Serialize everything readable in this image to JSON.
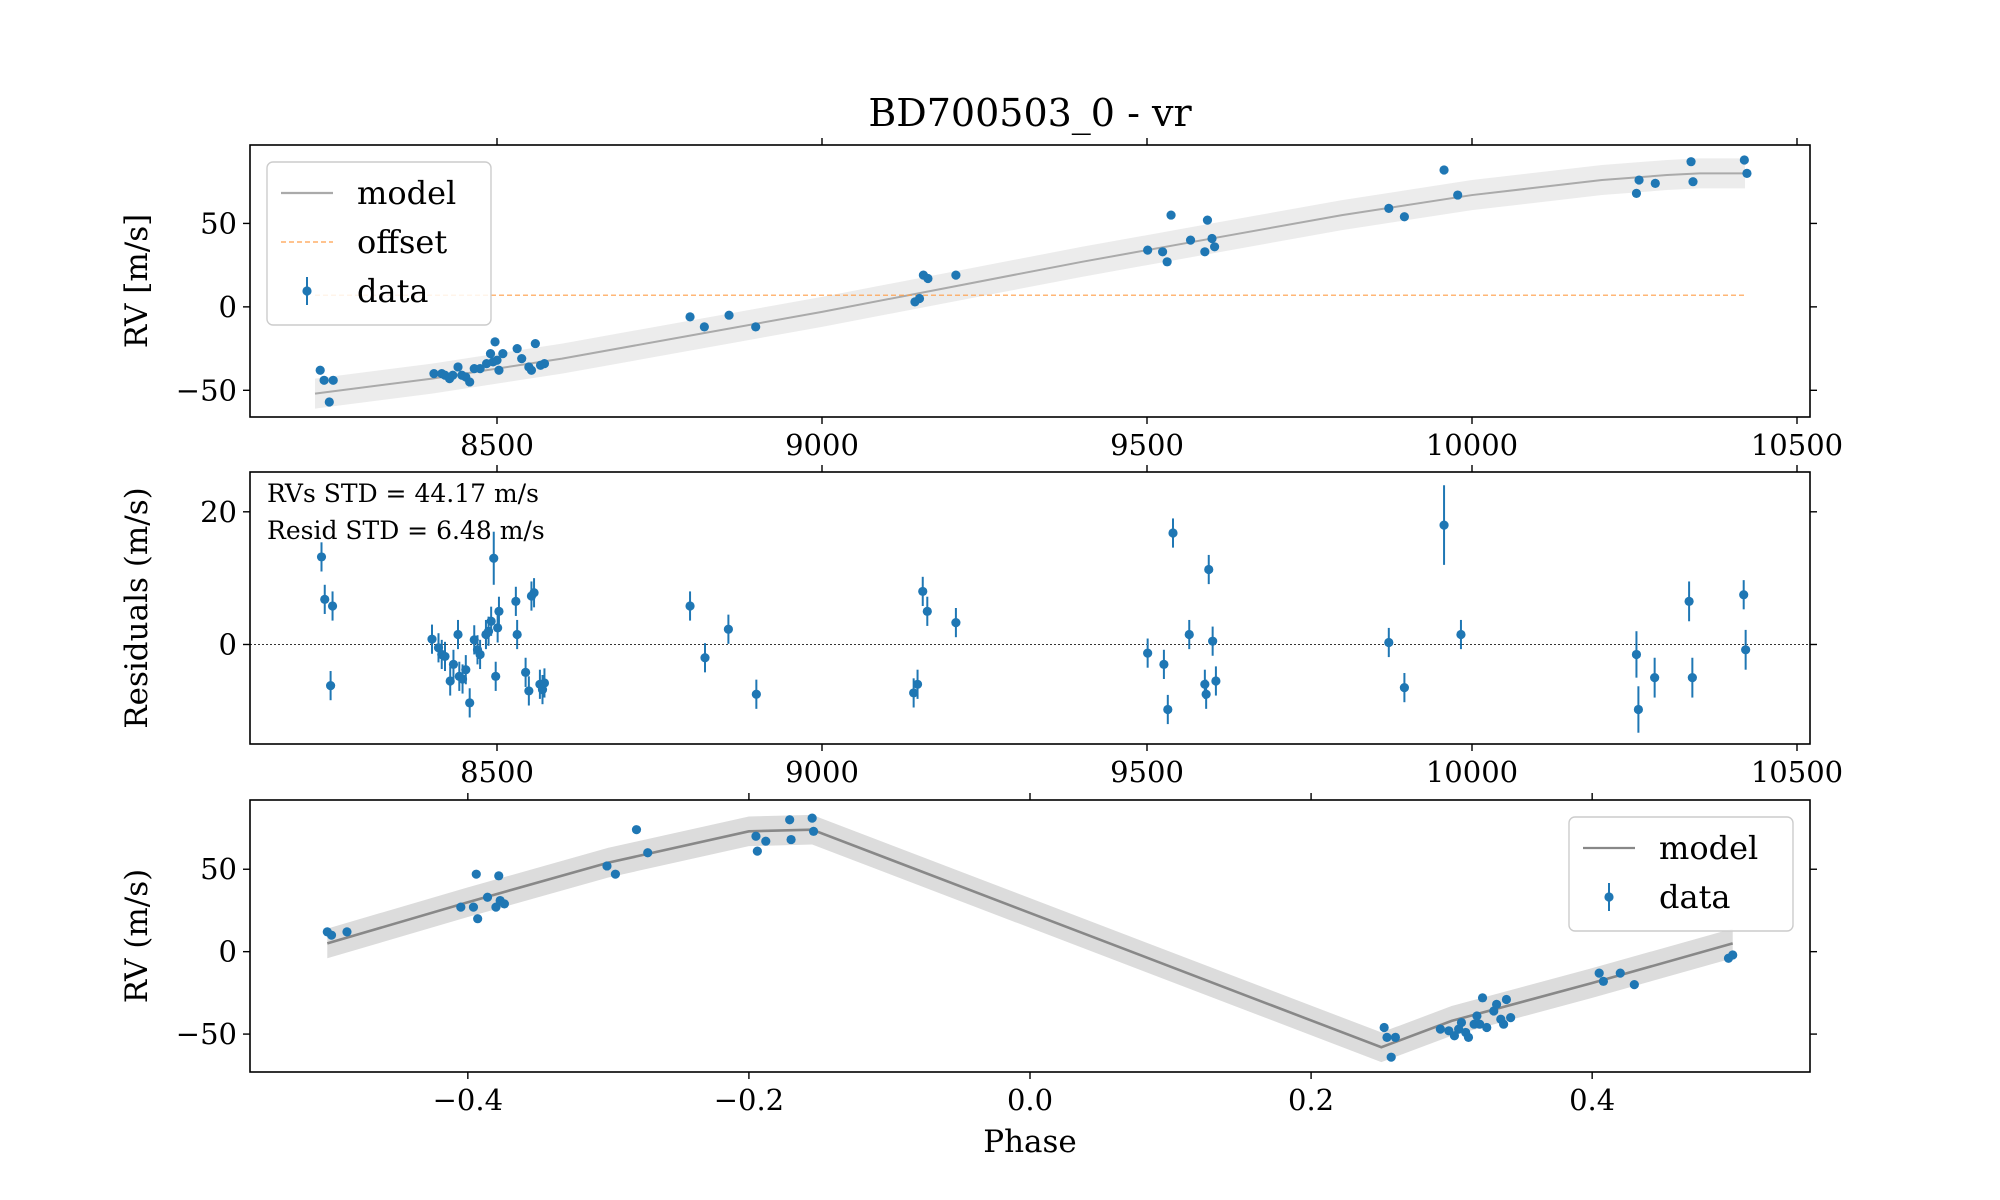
{
  "title": "BD700503_0 - vr",
  "colors": {
    "data": "#1f77b4",
    "model": "#999999",
    "offset": "#ff9f4a",
    "band": "#dcdcdc"
  },
  "chart_data": [
    {
      "type": "scatter",
      "name": "rv-time",
      "ylabel": "RV [m/s]",
      "xlim": [
        8120,
        10520
      ],
      "ylim": [
        -66,
        97
      ],
      "xticks": [
        8500,
        9000,
        9500,
        10000,
        10500
      ],
      "yticks": [
        -50,
        0,
        50
      ],
      "legend": {
        "position": "top-left",
        "items": [
          "model",
          "offset",
          "data"
        ]
      },
      "offset_line": {
        "y": 7,
        "x": [
          8220,
          10420
        ]
      },
      "model": {
        "x": [
          8220,
          8400,
          8600,
          8800,
          9000,
          9200,
          9400,
          9600,
          9800,
          10000,
          10200,
          10300,
          10350,
          10420
        ],
        "y": [
          -52,
          -43,
          -31,
          -17,
          -3,
          12,
          27,
          41,
          55,
          67,
          76,
          79,
          80,
          80
        ]
      },
      "series": [
        {
          "name": "data",
          "points": [
            [
              8228,
              -38
            ],
            [
              8234,
              -44
            ],
            [
              8242,
              -57
            ],
            [
              8248,
              -44
            ],
            [
              8403,
              -40
            ],
            [
              8415,
              -40
            ],
            [
              8420,
              -41
            ],
            [
              8427,
              -43
            ],
            [
              8432,
              -41
            ],
            [
              8440,
              -36
            ],
            [
              8446,
              -41
            ],
            [
              8452,
              -42
            ],
            [
              8458,
              -45
            ],
            [
              8465,
              -37
            ],
            [
              8474,
              -37
            ],
            [
              8484,
              -34
            ],
            [
              8490,
              -28
            ],
            [
              8494,
              -33
            ],
            [
              8497,
              -21
            ],
            [
              8500,
              -32
            ],
            [
              8503,
              -38
            ],
            [
              8509,
              -28
            ],
            [
              8531,
              -25
            ],
            [
              8538,
              -31
            ],
            [
              8549,
              -36
            ],
            [
              8553,
              -38
            ],
            [
              8559,
              -22
            ],
            [
              8567,
              -35
            ],
            [
              8573,
              -34
            ],
            [
              8797,
              -6
            ],
            [
              8819,
              -12
            ],
            [
              8857,
              -5
            ],
            [
              8898,
              -12
            ],
            [
              9143,
              3
            ],
            [
              9150,
              5
            ],
            [
              9156,
              19
            ],
            [
              9163,
              17
            ],
            [
              9206,
              19
            ],
            [
              9501,
              34
            ],
            [
              9524,
              33
            ],
            [
              9531,
              27
            ],
            [
              9537,
              55
            ],
            [
              9567,
              40
            ],
            [
              9589,
              33
            ],
            [
              9593,
              52
            ],
            [
              9600,
              41
            ],
            [
              9604,
              36
            ],
            [
              9872,
              59
            ],
            [
              9896,
              54
            ],
            [
              9957,
              82
            ],
            [
              9978,
              67
            ],
            [
              10253,
              68
            ],
            [
              10257,
              76
            ],
            [
              10282,
              74
            ],
            [
              10337,
              87
            ],
            [
              10340,
              75
            ],
            [
              10419,
              88
            ],
            [
              10423,
              80
            ]
          ]
        }
      ]
    },
    {
      "type": "scatter",
      "name": "residuals-time",
      "ylabel": "Residuals (m/s)",
      "xlim": [
        8120,
        10520
      ],
      "ylim": [
        -15,
        26
      ],
      "xticks": [
        8500,
        9000,
        9500,
        10000,
        10500
      ],
      "yticks": [
        0,
        20
      ],
      "zero_line": 0,
      "annotations": [
        "RVs STD = 44.17 m/s",
        "Resid STD = 6.48 m/s"
      ],
      "series": [
        {
          "name": "data",
          "points": [
            [
              8230,
              13.2,
              2.2
            ],
            [
              8235,
              6.8,
              2.2
            ],
            [
              8244,
              -6.2,
              2.2
            ],
            [
              8247,
              5.8,
              2.2
            ],
            [
              8400,
              0.8,
              2.2
            ],
            [
              8410,
              -0.5,
              2.2
            ],
            [
              8415,
              -1.5,
              2.2
            ],
            [
              8420,
              -1.8,
              2.2
            ],
            [
              8428,
              -5.5,
              2.2
            ],
            [
              8433,
              -3.0,
              2.2
            ],
            [
              8440,
              1.5,
              2.2
            ],
            [
              8442,
              -4.8,
              2.2
            ],
            [
              8447,
              -5.2,
              2.2
            ],
            [
              8452,
              -3.8,
              2.2
            ],
            [
              8458,
              -8.8,
              2.2
            ],
            [
              8465,
              0.7,
              2.2
            ],
            [
              8470,
              -0.8,
              2.2
            ],
            [
              8474,
              -1.5,
              2.2
            ],
            [
              8483,
              1.5,
              2.2
            ],
            [
              8487,
              2.0,
              2.2
            ],
            [
              8491,
              3.5,
              2.2
            ],
            [
              8495,
              13.0,
              4.0
            ],
            [
              8498,
              -4.8,
              2.2
            ],
            [
              8501,
              2.5,
              2.2
            ],
            [
              8503,
              5.0,
              2.2
            ],
            [
              8529,
              6.5,
              2.2
            ],
            [
              8531,
              1.5,
              2.2
            ],
            [
              8544,
              -4.2,
              2.2
            ],
            [
              8549,
              -7.0,
              2.2
            ],
            [
              8553,
              7.3,
              2.2
            ],
            [
              8557,
              7.8,
              2.2
            ],
            [
              8566,
              -6.0,
              2.2
            ],
            [
              8570,
              -6.8,
              2.2
            ],
            [
              8573,
              -5.8,
              2.2
            ],
            [
              8797,
              5.8,
              2.2
            ],
            [
              8820,
              -2.0,
              2.2
            ],
            [
              8856,
              2.3,
              2.2
            ],
            [
              8899,
              -7.5,
              2.2
            ],
            [
              9141,
              -7.3,
              2.2
            ],
            [
              9147,
              -6.0,
              2.2
            ],
            [
              9155,
              8.0,
              2.2
            ],
            [
              9162,
              5.0,
              2.2
            ],
            [
              9206,
              3.3,
              2.2
            ],
            [
              9501,
              -1.3,
              2.2
            ],
            [
              9526,
              -3.0,
              2.2
            ],
            [
              9532,
              -9.8,
              2.2
            ],
            [
              9540,
              16.8,
              2.2
            ],
            [
              9565,
              1.5,
              2.2
            ],
            [
              9589,
              -6.0,
              2.2
            ],
            [
              9591,
              -7.5,
              2.2
            ],
            [
              9595,
              11.3,
              2.2
            ],
            [
              9601,
              0.5,
              2.2
            ],
            [
              9606,
              -5.5,
              2.2
            ],
            [
              9872,
              0.3,
              2.2
            ],
            [
              9896,
              -6.5,
              2.2
            ],
            [
              9957,
              18.0,
              6.0
            ],
            [
              9983,
              1.5,
              2.2
            ],
            [
              10253,
              -1.5,
              3.5
            ],
            [
              10256,
              -9.8,
              3.5
            ],
            [
              10281,
              -5.0,
              3.0
            ],
            [
              10334,
              6.5,
              3.0
            ],
            [
              10339,
              -5.0,
              3.0
            ],
            [
              10418,
              7.5,
              2.2
            ],
            [
              10421,
              -0.8,
              3.0
            ]
          ]
        }
      ]
    },
    {
      "type": "scatter",
      "name": "rv-phase",
      "xlabel": "Phase",
      "ylabel": "RV (m/s)",
      "xlim": [
        -0.555,
        0.555
      ],
      "ylim": [
        -73,
        92
      ],
      "xticks": [
        -0.4,
        -0.2,
        0.0,
        0.2,
        0.4
      ],
      "xtick_labels": [
        "−0.4",
        "−0.2",
        "0.0",
        "0.2",
        "0.4"
      ],
      "yticks": [
        -50,
        0,
        50
      ],
      "legend": {
        "position": "top-right",
        "items": [
          "model",
          "data"
        ]
      },
      "model": {
        "x": [
          -0.5,
          -0.4,
          -0.3,
          -0.2,
          -0.155,
          0.25,
          0.3,
          0.4,
          0.5
        ],
        "y": [
          5,
          30,
          54,
          73,
          74,
          -58,
          -42,
          -19,
          5
        ]
      },
      "series": [
        {
          "name": "data",
          "points": [
            [
              -0.5,
              12
            ],
            [
              -0.497,
              10
            ],
            [
              -0.486,
              12
            ],
            [
              -0.405,
              27
            ],
            [
              -0.396,
              27
            ],
            [
              -0.394,
              47
            ],
            [
              -0.393,
              20
            ],
            [
              -0.386,
              33
            ],
            [
              -0.38,
              27
            ],
            [
              -0.378,
              46
            ],
            [
              -0.377,
              31
            ],
            [
              -0.374,
              29
            ],
            [
              -0.301,
              52
            ],
            [
              -0.295,
              47
            ],
            [
              -0.28,
              74
            ],
            [
              -0.272,
              60
            ],
            [
              -0.195,
              70
            ],
            [
              -0.194,
              61
            ],
            [
              -0.188,
              67
            ],
            [
              -0.171,
              80
            ],
            [
              -0.17,
              68
            ],
            [
              -0.155,
              81
            ],
            [
              -0.154,
              73
            ],
            [
              0.252,
              -46
            ],
            [
              0.254,
              -52
            ],
            [
              0.257,
              -64
            ],
            [
              0.26,
              -52
            ],
            [
              0.292,
              -47
            ],
            [
              0.298,
              -48
            ],
            [
              0.302,
              -51
            ],
            [
              0.305,
              -47
            ],
            [
              0.307,
              -43
            ],
            [
              0.31,
              -49
            ],
            [
              0.312,
              -52
            ],
            [
              0.316,
              -44
            ],
            [
              0.318,
              -39
            ],
            [
              0.32,
              -44
            ],
            [
              0.322,
              -28
            ],
            [
              0.325,
              -46
            ],
            [
              0.33,
              -36
            ],
            [
              0.332,
              -32
            ],
            [
              0.335,
              -41
            ],
            [
              0.337,
              -44
            ],
            [
              0.339,
              -29
            ],
            [
              0.342,
              -40
            ],
            [
              0.405,
              -13
            ],
            [
              0.408,
              -18
            ],
            [
              0.42,
              -13
            ],
            [
              0.43,
              -20
            ],
            [
              0.497,
              -4
            ],
            [
              0.5,
              -2
            ]
          ]
        }
      ]
    }
  ]
}
